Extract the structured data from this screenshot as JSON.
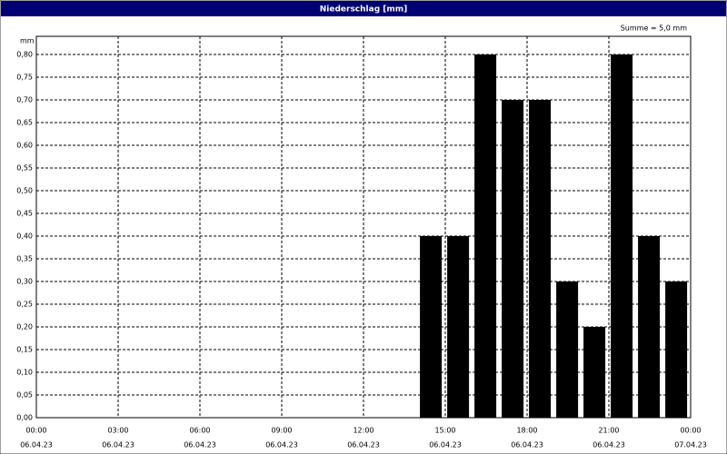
{
  "window_title": "Niederschlag [mm]",
  "chart_data": {
    "type": "bar",
    "y_unit": "mm",
    "annotation": "Summe = 5,0 mm",
    "x": [
      15,
      16,
      17,
      18,
      19,
      20,
      21,
      22,
      23,
      24
    ],
    "values": [
      0.4,
      0.4,
      0.8,
      0.7,
      0.7,
      0.3,
      0.2,
      0.8,
      0.4,
      0.3
    ],
    "color": "#000000",
    "xlim": [
      0,
      24
    ],
    "xticks": [
      {
        "value": 0,
        "label": "00:00",
        "date": "06.04.23"
      },
      {
        "value": 3,
        "label": "03:00",
        "date": "06.04.23"
      },
      {
        "value": 6,
        "label": "06:00",
        "date": "06.04.23"
      },
      {
        "value": 9,
        "label": "09:00",
        "date": "06.04.23"
      },
      {
        "value": 12,
        "label": "12:00",
        "date": "06.04.23"
      },
      {
        "value": 15,
        "label": "15:00",
        "date": "06.04.23"
      },
      {
        "value": 18,
        "label": "18:00",
        "date": "06.04.23"
      },
      {
        "value": 21,
        "label": "21:00",
        "date": "06.04.23"
      },
      {
        "value": 24,
        "label": "00:00",
        "date": "07.04.23"
      }
    ],
    "ylim": [
      0,
      0.8
    ],
    "yticks": [
      {
        "value": 0,
        "label": "0,00"
      },
      {
        "value": 0.05,
        "label": "0,05"
      },
      {
        "value": 0.1,
        "label": "0,10"
      },
      {
        "value": 0.15,
        "label": "0,15"
      },
      {
        "value": 0.2,
        "label": "0,20"
      },
      {
        "value": 0.25,
        "label": "0,25"
      },
      {
        "value": 0.3,
        "label": "0,30"
      },
      {
        "value": 0.35,
        "label": "0,35"
      },
      {
        "value": 0.4,
        "label": "0,40"
      },
      {
        "value": 0.45,
        "label": "0,45"
      },
      {
        "value": 0.5,
        "label": "0,50"
      },
      {
        "value": 0.55,
        "label": "0,55"
      },
      {
        "value": 0.6,
        "label": "0,60"
      },
      {
        "value": 0.65,
        "label": "0,65"
      },
      {
        "value": 0.7,
        "label": "0,70"
      },
      {
        "value": 0.75,
        "label": "0,75"
      },
      {
        "value": 0.8,
        "label": "0,80"
      }
    ],
    "grid": true
  }
}
